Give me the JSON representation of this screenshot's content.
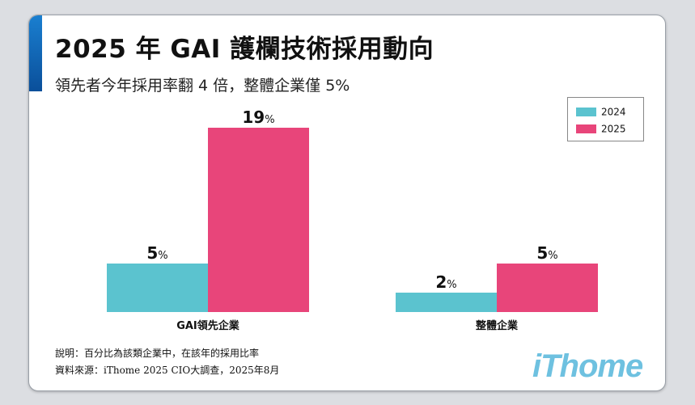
{
  "title": "2025 年 GAI 護欄技術採用動向",
  "subtitle": "領先者今年採用率翻 4 倍，整體企業僅 5%",
  "colors": {
    "2024": "#5bc3cf",
    "2025": "#e8457a",
    "accent": "#0a6fbf",
    "logo": "#6ec1e0"
  },
  "legend": [
    {
      "label": "2024",
      "color": "#5bc3cf"
    },
    {
      "label": "2025",
      "color": "#e8457a"
    }
  ],
  "chart_data": {
    "type": "bar",
    "categories": [
      "GAI領先企業",
      "整體企業"
    ],
    "series": [
      {
        "name": "2024",
        "values": [
          5,
          2
        ]
      },
      {
        "name": "2025",
        "values": [
          19,
          5
        ]
      }
    ],
    "unit": "%",
    "ylim": [
      0,
      20
    ],
    "grid": false,
    "legend_position": "top-right"
  },
  "notes": {
    "line1": "說明：百分比為該類企業中，在該年的採用比率",
    "line2": "資料來源：iThome 2025 CIO大調查，2025年8月"
  },
  "logo_text": "iThome"
}
